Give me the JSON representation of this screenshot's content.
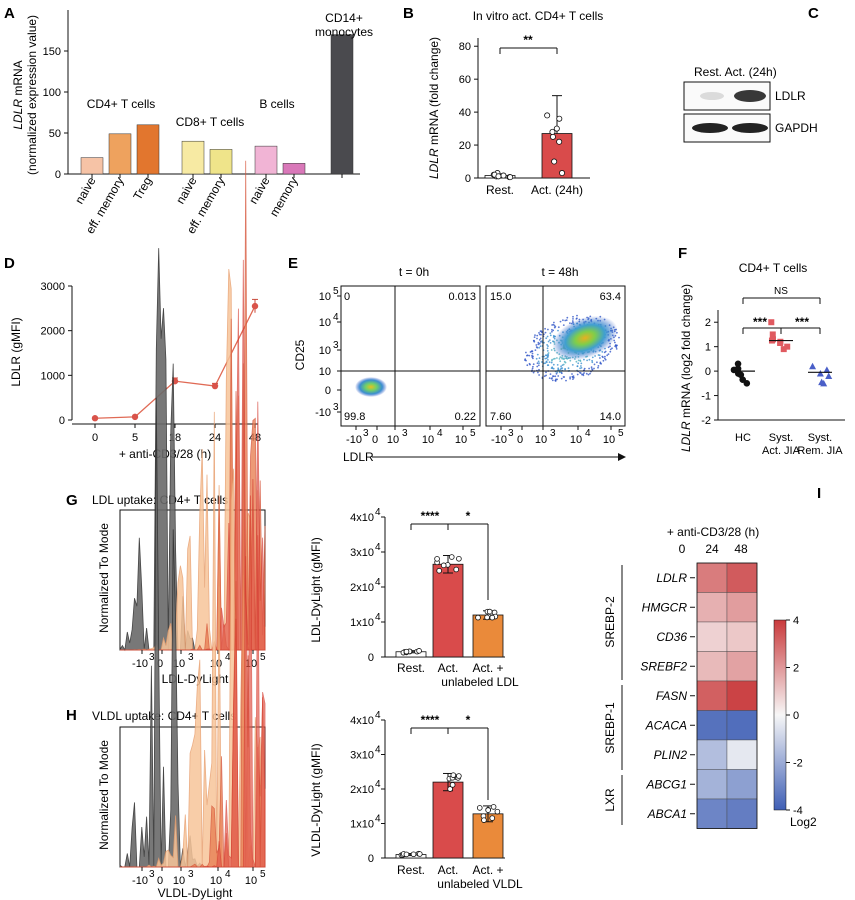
{
  "panels": {
    "A": {
      "label": "A",
      "ylabel_gene": "LDLR",
      "ylabel_rest": " mRNA",
      "ylabel_line2": "(normalized expression value)",
      "yticks": [
        "0",
        "50",
        "100",
        "150"
      ],
      "groups": [
        "CD4+ T cells",
        "CD8+ T cells",
        "B cells",
        "CD14+",
        "monocytes"
      ],
      "categories": [
        "naive",
        "eff. memory",
        "Treg",
        "naive",
        "eff. memory",
        "naive",
        "memory"
      ],
      "colors": [
        "#f6c3a6",
        "#eea25e",
        "#e2762e",
        "#f7eaa3",
        "#efe48a",
        "#f1b4d5",
        "#d978b9",
        "#4a4a4e"
      ]
    },
    "B": {
      "label": "B",
      "title": "In vitro act. CD4+ T cells",
      "ylabel_gene": "LDLR",
      "ylabel_rest": " mRNA (fold change)",
      "yticks": [
        "0",
        "20",
        "40",
        "60",
        "80"
      ],
      "categories": [
        "Rest.",
        "Act. (24h)"
      ],
      "sig": "**"
    },
    "C": {
      "label": "C",
      "header": "Rest.  Act. (24h)",
      "bands": [
        "LDLR",
        "GAPDH"
      ]
    },
    "D": {
      "label": "D",
      "ylabel": "LDLR (gMFI)",
      "xlabel": "+ anti-CD3/28 (h)",
      "yticks": [
        "0",
        "1000",
        "2000",
        "3000"
      ],
      "xticks": [
        "0",
        "5",
        "18",
        "24",
        "48"
      ]
    },
    "E": {
      "label": "E",
      "titles": [
        "t = 0h",
        "t = 48h"
      ],
      "ylabel": "CD25",
      "xlabel": "LDLR",
      "yticks": [
        "10",
        "10",
        "10",
        "10",
        "0",
        "-10"
      ],
      "ytick_exps": [
        "5",
        "4",
        "3",
        "",
        "",
        "3"
      ],
      "xticks_base": [
        "-10",
        "0",
        "10",
        "10",
        "10"
      ],
      "xticks_exp": [
        "3",
        "",
        "3",
        "4",
        "5"
      ],
      "q0": [
        "0",
        "0.013",
        "99.8",
        "0.22"
      ],
      "q48": [
        "15.0",
        "63.4",
        "7.60",
        "14.0"
      ]
    },
    "F": {
      "label": "F",
      "title": "CD4+ T cells",
      "ylabel_gene": "LDLR",
      "ylabel_rest": " mRNA (log2 fold change)",
      "yticks": [
        "2",
        "1",
        "0",
        "-1",
        "-2"
      ],
      "xcats_line1": [
        "HC",
        "Syst.",
        "Syst."
      ],
      "xcats_line2": [
        "",
        "Act. JIA",
        "Rem. JIA"
      ],
      "sig": [
        "NS",
        "***",
        "***"
      ]
    },
    "G": {
      "label": "G",
      "title": "LDL uptake: CD4+ T cells",
      "hist_ylabel": "Normalized To Mode",
      "hist_xlabel": "LDL-DyLight",
      "bar_ylabel": "LDL-DyLight (gMFI)",
      "yticks": [
        "0",
        "1x10",
        "2x10",
        "3x10",
        "4x10"
      ],
      "ytick_exp": "4",
      "categories": [
        "Rest.",
        "Act.",
        "Act. +"
      ],
      "cat3_line2": "unlabeled LDL",
      "sig": [
        "****",
        "*"
      ]
    },
    "H": {
      "label": "H",
      "title": "VLDL uptake: CD4+ T cells",
      "hist_ylabel": "Normalized To Mode",
      "hist_xlabel": "VLDL-DyLight",
      "bar_ylabel": "VLDL-DyLight (gMFI)",
      "yticks": [
        "0",
        "1x10",
        "2x10",
        "3x10",
        "4x10"
      ],
      "ytick_exp": "4",
      "categories": [
        "Rest.",
        "Act.",
        "Act. +"
      ],
      "cat3_line2": "unlabeled VLDL",
      "sig": [
        "****",
        "*"
      ]
    },
    "I": {
      "label": "I",
      "header": "+ anti-CD3/28 (h)",
      "cols": [
        "0",
        "24",
        "48"
      ],
      "genes": [
        "LDLR",
        "HMGCR",
        "CD36",
        "SREBF2",
        "FASN",
        "ACACA",
        "PLIN2",
        "ABCG1",
        "ABCA1"
      ],
      "groups": [
        "SREBP-2",
        "SREBP-1",
        "LXR"
      ],
      "cbar_ticks": [
        "4",
        "2",
        "0",
        "-2",
        "-4"
      ],
      "cbar_label": "Log2"
    },
    "hist_xticks_base": [
      "-10",
      "0",
      "10",
      "10",
      "10"
    ],
    "hist_xticks_exp": [
      "3",
      "",
      "3",
      "4",
      "5"
    ]
  },
  "chart_data": [
    {
      "panel": "A",
      "type": "bar",
      "categories": [
        "CD4+ naive",
        "CD4+ eff. memory",
        "CD4+ Treg",
        "CD8+ naive",
        "CD8+ eff. memory",
        "B naive",
        "B memory",
        "CD14+ monocytes"
      ],
      "values": [
        20,
        49,
        60,
        40,
        30,
        34,
        13,
        170
      ],
      "ylim": [
        0,
        200
      ]
    },
    {
      "panel": "B",
      "type": "bar",
      "categories": [
        "Rest.",
        "Act. (24h)"
      ],
      "values": [
        1.5,
        27
      ],
      "errors": [
        1,
        23
      ],
      "points": [
        [
          1,
          2,
          0.5,
          3,
          1.5,
          2,
          0.5,
          1
        ],
        [
          10,
          38,
          3,
          22,
          36,
          25,
          30,
          28
        ]
      ],
      "ylim": [
        0,
        85
      ]
    },
    {
      "panel": "D",
      "type": "line",
      "x": [
        "0",
        "5",
        "18",
        "24",
        "48"
      ],
      "values": [
        40,
        70,
        870,
        760,
        2550
      ],
      "errors": [
        20,
        20,
        70,
        60,
        150
      ],
      "ylim": [
        0,
        3000
      ]
    },
    {
      "panel": "F",
      "type": "scatter",
      "categories": [
        "HC",
        "Syst. Act. JIA",
        "Syst. Rem. JIA"
      ],
      "points": [
        [
          0.05,
          -0.1,
          0.3,
          0.1,
          -0.5,
          -0.15,
          -0.35
        ],
        [
          1.5,
          1.3,
          1.25,
          1.2,
          0.9,
          1.15,
          2.0,
          1.0
        ],
        [
          0.2,
          -0.2,
          0.05,
          -0.5,
          -0.45,
          -0.1
        ]
      ],
      "means": [
        0.0,
        1.25,
        -0.05
      ],
      "ylim": [
        -2,
        2.5
      ]
    },
    {
      "panel": "G",
      "type": "bar",
      "categories": [
        "Rest.",
        "Act.",
        "Act. + unlabeled LDL"
      ],
      "values": [
        1500,
        26500,
        12000
      ],
      "errors": [
        300,
        2500,
        1200
      ],
      "ylim": [
        0,
        40000
      ]
    },
    {
      "panel": "H",
      "type": "bar",
      "categories": [
        "Rest.",
        "Act.",
        "Act. + unlabeled VLDL"
      ],
      "values": [
        1000,
        22000,
        12800
      ],
      "errors": [
        300,
        2500,
        2300
      ],
      "ylim": [
        0,
        40000
      ]
    },
    {
      "panel": "I",
      "type": "heatmap",
      "rows": [
        "LDLR",
        "HMGCR",
        "CD36",
        "SREBF2",
        "FASN",
        "ACACA",
        "PLIN2",
        "ABCG1",
        "ABCA1"
      ],
      "cols": [
        "0",
        "24",
        "48"
      ],
      "values": [
        [
          0,
          2.6,
          3.3
        ],
        [
          0,
          1.5,
          1.9
        ],
        [
          0,
          0.8,
          1.0
        ],
        [
          0,
          1.3,
          1.8
        ],
        [
          0,
          3.2,
          3.8
        ],
        [
          0,
          -3.5,
          -3.6
        ],
        [
          0,
          -1.5,
          -0.4
        ],
        [
          0,
          -1.8,
          -2.3
        ],
        [
          0,
          -3.0,
          -3.2
        ]
      ],
      "zlim": [
        -4,
        4
      ]
    }
  ]
}
